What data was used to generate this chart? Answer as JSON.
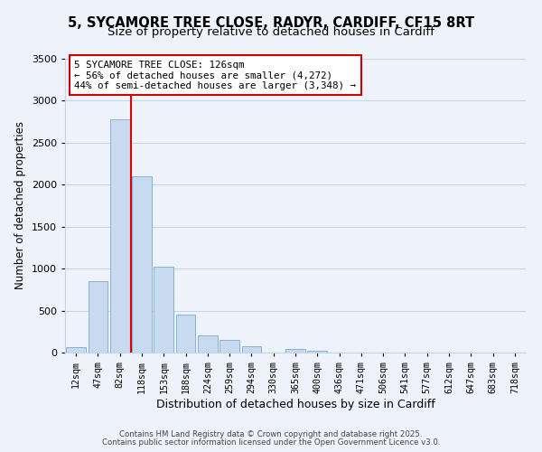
{
  "title": "5, SYCAMORE TREE CLOSE, RADYR, CARDIFF, CF15 8RT",
  "subtitle": "Size of property relative to detached houses in Cardiff",
  "bar_labels": [
    "12sqm",
    "47sqm",
    "82sqm",
    "118sqm",
    "153sqm",
    "188sqm",
    "224sqm",
    "259sqm",
    "294sqm",
    "330sqm",
    "365sqm",
    "400sqm",
    "436sqm",
    "471sqm",
    "506sqm",
    "541sqm",
    "577sqm",
    "612sqm",
    "647sqm",
    "683sqm",
    "718sqm"
  ],
  "bar_values": [
    60,
    850,
    2775,
    2100,
    1025,
    450,
    205,
    150,
    75,
    0,
    40,
    20,
    5,
    2,
    1,
    0,
    0,
    0,
    0,
    0,
    0
  ],
  "bar_color": "#c8daf0",
  "bar_edge_color": "#7aaad0",
  "vline_color": "#dd0000",
  "ylabel": "Number of detached properties",
  "xlabel": "Distribution of detached houses by size in Cardiff",
  "ylim": [
    0,
    3500
  ],
  "yticks": [
    0,
    500,
    1000,
    1500,
    2000,
    2500,
    3000,
    3500
  ],
  "annotation_title": "5 SYCAMORE TREE CLOSE: 126sqm",
  "annotation_line1": "← 56% of detached houses are smaller (4,272)",
  "annotation_line2": "44% of semi-detached houses are larger (3,348) →",
  "annotation_box_color": "#ffffff",
  "annotation_box_edge": "#cc0000",
  "footer1": "Contains HM Land Registry data © Crown copyright and database right 2025.",
  "footer2": "Contains public sector information licensed under the Open Government Licence v3.0.",
  "bg_color": "#eef2fb",
  "grid_color": "#c5d5e8",
  "title_fontsize": 10.5,
  "subtitle_fontsize": 9.5
}
